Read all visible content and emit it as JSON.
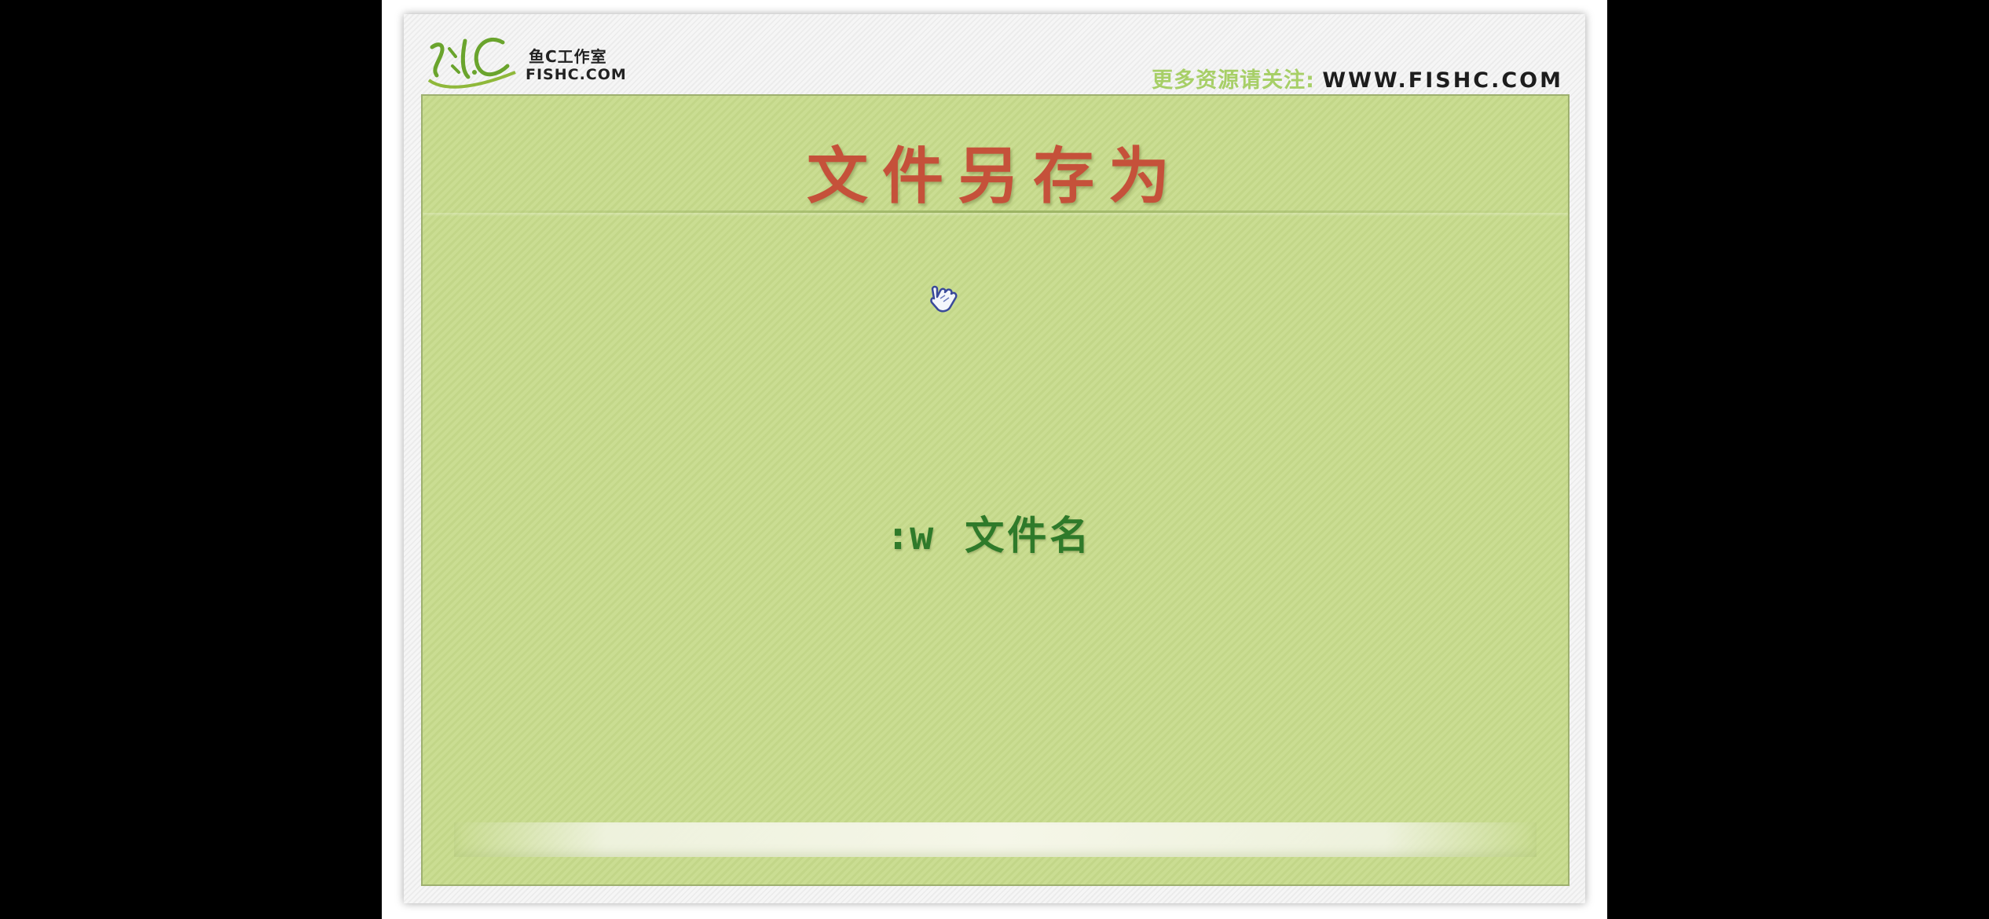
{
  "header": {
    "logo_cn": "鱼C工作室",
    "logo_en": "FISHC.COM",
    "promo_cn": "更多资源请关注:",
    "promo_url": "WWW.FISHC.COM"
  },
  "slide": {
    "title": "文件另存为",
    "command": ":w",
    "command_arg": "文件名"
  },
  "colors": {
    "title": "#c5513a",
    "command": "#2f7a2a",
    "panel_bg": "#c6d98d",
    "promo_cn": "#a7cf67"
  },
  "icons": {
    "cursor": "hand-pointer-icon",
    "logo": "fishc-logo"
  }
}
